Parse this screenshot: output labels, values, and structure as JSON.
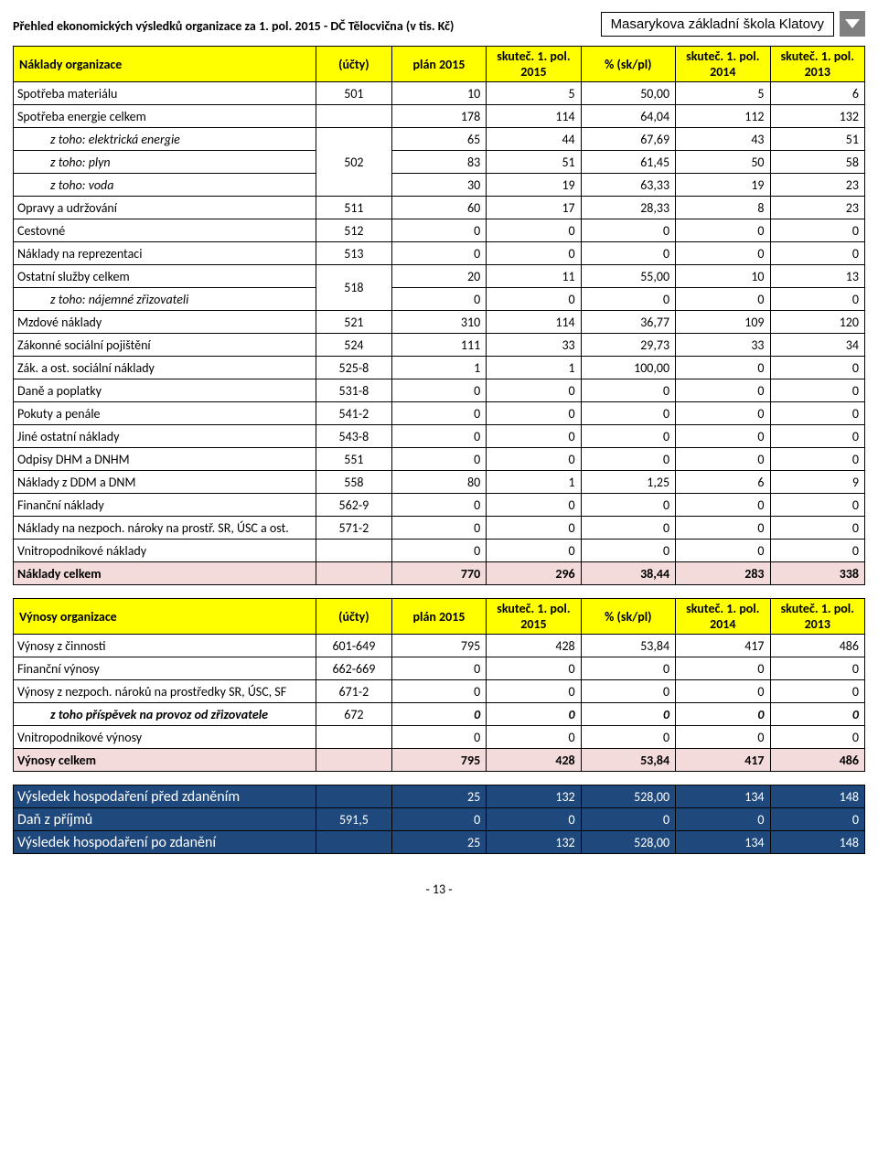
{
  "header": {
    "title": "Přehled ekonomických výsledků organizace za 1. pol. 2015 - DČ Tělocvična (v tis. Kč)",
    "logo": "Masarykova základní škola Klatovy"
  },
  "columns": {
    "ucty": "(účty)",
    "plan": "plán 2015",
    "skut15": "skuteč. 1. pol. 2015",
    "pct": "% (sk/pl)",
    "skut14": "skuteč. 1. pol. 2014",
    "skut13": "skuteč. 1. pol. 2013"
  },
  "naklady": {
    "title": "Náklady organizace",
    "rows": [
      {
        "name": "Spotřeba materiálu",
        "acc": "501",
        "plan": "10",
        "s15": "5",
        "pct": "50,00",
        "s14": "5",
        "s13": "6"
      },
      {
        "name": "Spotřeba energie celkem",
        "acc": "",
        "plan": "178",
        "s15": "114",
        "pct": "64,04",
        "s14": "112",
        "s13": "132"
      },
      {
        "name": "z toho: elektrická energie",
        "indent": true,
        "acc": "502",
        "accRowspan": 4,
        "plan": "65",
        "s15": "44",
        "pct": "67,69",
        "s14": "43",
        "s13": "51"
      },
      {
        "name": "z toho: plyn",
        "indent": true,
        "noAcc": true,
        "plan": "83",
        "s15": "51",
        "pct": "61,45",
        "s14": "50",
        "s13": "58"
      },
      {
        "name": "z toho: voda",
        "indent": true,
        "noAcc": true,
        "plan": "30",
        "s15": "19",
        "pct": "63,33",
        "s14": "19",
        "s13": "23"
      },
      {
        "name": "Opravy a udržování",
        "acc": "511",
        "plan": "60",
        "s15": "17",
        "pct": "28,33",
        "s14": "8",
        "s13": "23"
      },
      {
        "name": "Cestovné",
        "acc": "512",
        "plan": "0",
        "s15": "0",
        "pct": "0",
        "s14": "0",
        "s13": "0"
      },
      {
        "name": "Náklady na reprezentaci",
        "acc": "513",
        "plan": "0",
        "s15": "0",
        "pct": "0",
        "s14": "0",
        "s13": "0"
      },
      {
        "name": "Ostatní služby celkem",
        "acc": "518",
        "accRowspan": 2,
        "plan": "20",
        "s15": "11",
        "pct": "55,00",
        "s14": "10",
        "s13": "13"
      },
      {
        "name": "z toho: nájemné zřizovateli",
        "indent": true,
        "noAcc": true,
        "plan": "0",
        "s15": "0",
        "pct": "0",
        "s14": "0",
        "s13": "0"
      },
      {
        "name": "Mzdové náklady",
        "acc": "521",
        "plan": "310",
        "s15": "114",
        "pct": "36,77",
        "s14": "109",
        "s13": "120"
      },
      {
        "name": "Zákonné sociální pojištění",
        "acc": "524",
        "plan": "111",
        "s15": "33",
        "pct": "29,73",
        "s14": "33",
        "s13": "34"
      },
      {
        "name": "Zák. a ost. sociální náklady",
        "acc": "525-8",
        "plan": "1",
        "s15": "1",
        "pct": "100,00",
        "s14": "0",
        "s13": "0"
      },
      {
        "name": "Daně a poplatky",
        "acc": "531-8",
        "plan": "0",
        "s15": "0",
        "pct": "0",
        "s14": "0",
        "s13": "0"
      },
      {
        "name": "Pokuty a penále",
        "acc": "541-2",
        "plan": "0",
        "s15": "0",
        "pct": "0",
        "s14": "0",
        "s13": "0"
      },
      {
        "name": "Jiné ostatní náklady",
        "acc": "543-8",
        "plan": "0",
        "s15": "0",
        "pct": "0",
        "s14": "0",
        "s13": "0"
      },
      {
        "name": "Odpisy DHM a DNHM",
        "acc": "551",
        "plan": "0",
        "s15": "0",
        "pct": "0",
        "s14": "0",
        "s13": "0"
      },
      {
        "name": "Náklady z DDM a DNM",
        "acc": "558",
        "plan": "80",
        "s15": "1",
        "pct": "1,25",
        "s14": "6",
        "s13": "9"
      },
      {
        "name": "Finanční náklady",
        "acc": "562-9",
        "plan": "0",
        "s15": "0",
        "pct": "0",
        "s14": "0",
        "s13": "0"
      },
      {
        "name": "Náklady na nezpoch. nároky na prostř. SR, ÚSC a ost.",
        "acc": "571-2",
        "plan": "0",
        "s15": "0",
        "pct": "0",
        "s14": "0",
        "s13": "0"
      },
      {
        "name": "Vnitropodnikové náklady",
        "acc": "",
        "plan": "0",
        "s15": "0",
        "pct": "0",
        "s14": "0",
        "s13": "0"
      }
    ],
    "total": {
      "name": "Náklady celkem",
      "plan": "770",
      "s15": "296",
      "pct": "38,44",
      "s14": "283",
      "s13": "338"
    }
  },
  "vynosy": {
    "title": "Výnosy organizace",
    "rows": [
      {
        "name": "Výnosy z činnosti",
        "acc": "601-649",
        "plan": "795",
        "s15": "428",
        "pct": "53,84",
        "s14": "417",
        "s13": "486"
      },
      {
        "name": "Finanční výnosy",
        "acc": "662-669",
        "plan": "0",
        "s15": "0",
        "pct": "0",
        "s14": "0",
        "s13": "0"
      },
      {
        "name": "Výnosy z nezpoch. nároků na prostředky SR, ÚSC, SF",
        "acc": "671-2",
        "plan": "0",
        "s15": "0",
        "pct": "0",
        "s14": "0",
        "s13": "0"
      },
      {
        "name": "z toho příspěvek na provoz od zřizovatele",
        "indent": true,
        "boldItalic": true,
        "acc": "672",
        "plan": "0",
        "s15": "0",
        "pct": "0",
        "s14": "0",
        "s13": "0",
        "italicRow": true
      },
      {
        "name": "Vnitropodnikové výnosy",
        "acc": "",
        "plan": "0",
        "s15": "0",
        "pct": "0",
        "s14": "0",
        "s13": "0"
      }
    ],
    "total": {
      "name": "Výnosy celkem",
      "plan": "795",
      "s15": "428",
      "pct": "53,84",
      "s14": "417",
      "s13": "486"
    }
  },
  "vysledek": {
    "r1": {
      "name": "Výsledek hospodaření před zdaněním",
      "plan": "25",
      "s15": "132",
      "pct": "528,00",
      "s14": "134",
      "s13": "148"
    },
    "tax": {
      "name": "Daň z příjmů",
      "acc": "591,5",
      "plan": "0",
      "s15": "0",
      "pct": "0",
      "s14": "0",
      "s13": "0"
    },
    "r2": {
      "name": "Výsledek hospodaření po zdanění",
      "plan": "25",
      "s15": "132",
      "pct": "528,00",
      "s14": "134",
      "s13": "148"
    }
  },
  "pageNum": "- 13 -"
}
